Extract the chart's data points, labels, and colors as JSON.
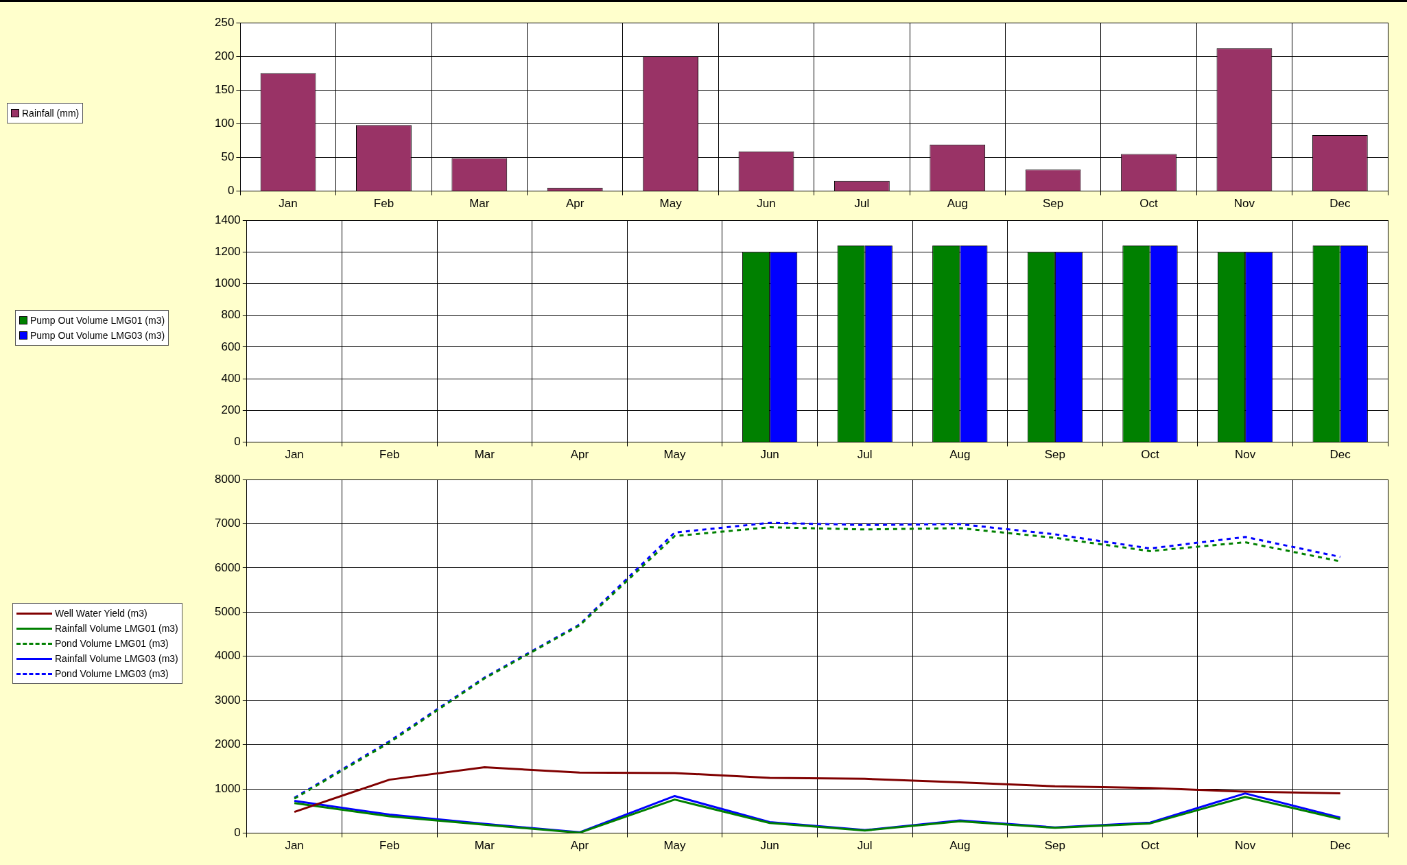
{
  "chart_data": [
    {
      "type": "bar",
      "categories": [
        "Jan",
        "Feb",
        "Mar",
        "Apr",
        "May",
        "Jun",
        "Jul",
        "Aug",
        "Sep",
        "Oct",
        "Nov",
        "Dec"
      ],
      "series": [
        {
          "name": "Rainfall (mm)",
          "color": "#993366",
          "values": [
            175,
            98,
            49,
            5,
            200,
            59,
            15,
            69,
            32,
            55,
            212,
            83
          ]
        }
      ],
      "ylim": [
        0,
        250
      ],
      "yticks": [
        0,
        50,
        100,
        150,
        200,
        250
      ],
      "grid": true,
      "legend": "left"
    },
    {
      "type": "bar",
      "categories": [
        "Jan",
        "Feb",
        "Mar",
        "Apr",
        "May",
        "Jun",
        "Jul",
        "Aug",
        "Sep",
        "Oct",
        "Nov",
        "Dec"
      ],
      "series": [
        {
          "name": "Pump Out Volume LMG01 (m3)",
          "color": "#008000",
          "values": [
            null,
            null,
            null,
            null,
            null,
            1200,
            1240,
            1240,
            1200,
            1240,
            1200,
            1240
          ]
        },
        {
          "name": "Pump Out Volume LMG03 (m3)",
          "color": "#0000ff",
          "values": [
            null,
            null,
            null,
            null,
            null,
            1200,
            1240,
            1240,
            1200,
            1240,
            1200,
            1240
          ]
        }
      ],
      "ylim": [
        0,
        1400
      ],
      "yticks": [
        0,
        200,
        400,
        600,
        800,
        1000,
        1200,
        1400
      ],
      "grid": true,
      "legend": "left"
    },
    {
      "type": "line",
      "categories": [
        "Jan",
        "Feb",
        "Mar",
        "Apr",
        "May",
        "Jun",
        "Jul",
        "Aug",
        "Sep",
        "Oct",
        "Nov",
        "Dec"
      ],
      "series": [
        {
          "name": "Well Water Yield (m3)",
          "color": "#800000",
          "line_style": "solid",
          "values": [
            480,
            1210,
            1490,
            1370,
            1360,
            1250,
            1230,
            1150,
            1060,
            1020,
            940,
            900
          ]
        },
        {
          "name": "Rainfall Volume LMG01 (m3)",
          "color": "#008000",
          "line_style": "solid",
          "values": [
            680,
            380,
            190,
            10,
            760,
            230,
            60,
            270,
            120,
            220,
            820,
            320
          ]
        },
        {
          "name": "Pond Volume LMG01 (m3)",
          "color": "#008000",
          "line_style": "dashed",
          "values": [
            780,
            2050,
            3500,
            4700,
            6720,
            6920,
            6870,
            6900,
            6680,
            6380,
            6580,
            6150
          ]
        },
        {
          "name": "Rainfall Volume LMG03 (m3)",
          "color": "#0000ff",
          "line_style": "solid",
          "values": [
            730,
            420,
            210,
            20,
            840,
            250,
            70,
            290,
            130,
            240,
            900,
            350
          ]
        },
        {
          "name": "Pond Volume LMG03 (m3)",
          "color": "#0000ff",
          "line_style": "dashed",
          "values": [
            800,
            2080,
            3520,
            4720,
            6800,
            7020,
            6970,
            6990,
            6760,
            6440,
            6700,
            6250
          ]
        }
      ],
      "ylim": [
        0,
        8000
      ],
      "yticks": [
        0,
        1000,
        2000,
        3000,
        4000,
        5000,
        6000,
        7000,
        8000
      ],
      "grid": true,
      "legend": "left",
      "marker": "none"
    }
  ]
}
